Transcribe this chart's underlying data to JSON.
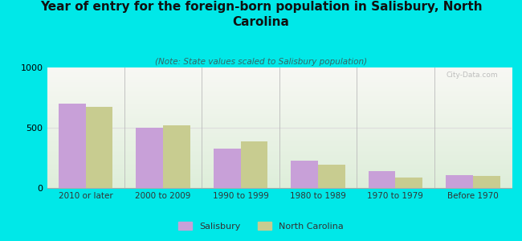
{
  "categories": [
    "2010 or later",
    "2000 to 2009",
    "1990 to 1999",
    "1980 to 1989",
    "1970 to 1979",
    "Before 1970"
  ],
  "salisbury_values": [
    700,
    500,
    330,
    230,
    140,
    110
  ],
  "nc_values": [
    675,
    520,
    390,
    195,
    90,
    100
  ],
  "salisbury_color": "#c8a0d8",
  "nc_color": "#c8cc90",
  "background_outer": "#00e8e8",
  "background_plot_top": "#f5f5f0",
  "background_plot_bottom": "#e0eedc",
  "title": "Year of entry for the foreign-born population in Salisbury, North\nCarolina",
  "subtitle": "(Note: State values scaled to Salisbury population)",
  "ylim": [
    0,
    1000
  ],
  "yticks": [
    0,
    500,
    1000
  ],
  "legend_labels": [
    "Salisbury",
    "North Carolina"
  ],
  "watermark": "City-Data.com",
  "title_fontsize": 11,
  "subtitle_fontsize": 7.5,
  "bar_width": 0.35
}
